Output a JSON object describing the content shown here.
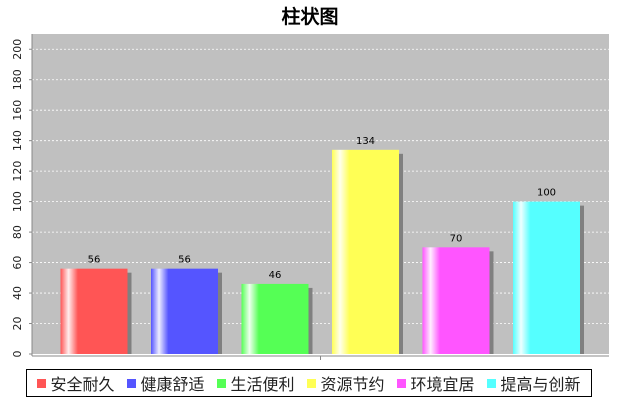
{
  "chart_data": {
    "type": "bar",
    "title": "柱状图",
    "xlabel": "",
    "ylabel": "",
    "ylim": [
      0,
      210
    ],
    "yticks": [
      0,
      20,
      40,
      60,
      80,
      100,
      120,
      140,
      160,
      180,
      200
    ],
    "grid": true,
    "legend_position": "bottom",
    "categories": [
      "安全耐久",
      "健康舒适",
      "生活便利",
      "资源节约",
      "环境宜居",
      "提高与创新"
    ],
    "values": [
      56,
      56,
      46,
      134,
      70,
      100
    ],
    "data_labels": [
      "56",
      "56",
      "46",
      "134",
      "70",
      "100"
    ],
    "colors": [
      "#ff5555",
      "#5555ff",
      "#55ff55",
      "#ffff55",
      "#ff55ff",
      "#55ffff"
    ],
    "plot_background": "#c0c0c0"
  }
}
